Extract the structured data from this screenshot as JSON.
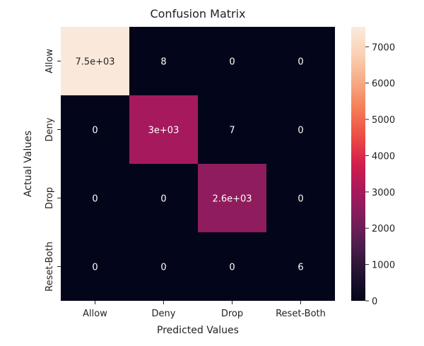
{
  "chart_data": {
    "type": "heatmap",
    "title": "Confusion Matrix",
    "xlabel": "Predicted Values",
    "ylabel": "Actual Values",
    "x_categories": [
      "Allow",
      "Deny",
      "Drop",
      "Reset-Both"
    ],
    "y_categories": [
      "Allow",
      "Deny",
      "Drop",
      "Reset-Both"
    ],
    "values": [
      [
        7500,
        8,
        0,
        0
      ],
      [
        0,
        3000,
        7,
        0
      ],
      [
        0,
        0,
        2600,
        0
      ],
      [
        0,
        0,
        0,
        6
      ]
    ],
    "annotations": [
      [
        "7.5e+03",
        "8",
        "0",
        "0"
      ],
      [
        "0",
        "3e+03",
        "7",
        "0"
      ],
      [
        "0",
        "0",
        "2.6e+03",
        "0"
      ],
      [
        "0",
        "0",
        "0",
        "6"
      ]
    ],
    "colorbar": {
      "ticks": [
        0,
        1000,
        2000,
        3000,
        4000,
        5000,
        6000,
        7000
      ],
      "tick_labels": [
        "0",
        "1000",
        "2000",
        "3000",
        "4000",
        "5000",
        "6000",
        "7000"
      ],
      "range": [
        0,
        7550
      ]
    },
    "colormap_stops": [
      "#03051a",
      "#221331",
      "#4c1d4b",
      "#7b1e5b",
      "#a8195d",
      "#d21e4d",
      "#ec4d43",
      "#f47d57",
      "#f5ab84",
      "#fad1b4",
      "#faebdd"
    ]
  }
}
